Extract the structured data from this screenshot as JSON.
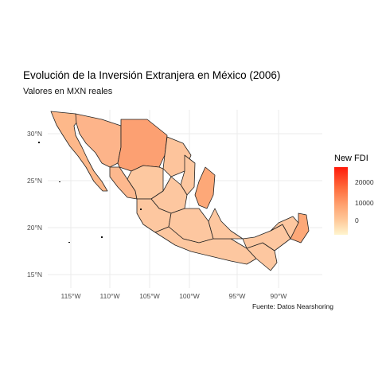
{
  "title": "Evolución de la Inversión Extranjera en México (2006)",
  "subtitle": "Valores en MXN reales",
  "caption": "Fuente: Datos Nearshoring",
  "legend": {
    "title": "New FDI",
    "ticks": [
      "20000",
      "10000",
      "0"
    ],
    "colors": {
      "high": "#FF1A0A",
      "mid": "#FFA06E",
      "low": "#FFF5CE"
    }
  },
  "axes": {
    "lat_labels": [
      "30°N",
      "25°N",
      "20°N",
      "15°N"
    ],
    "lon_labels": [
      "115°W",
      "110°W",
      "105°W",
      "100°W",
      "95°W",
      "90°W"
    ],
    "grid": true
  },
  "map": {
    "region": "México",
    "units": "state",
    "fill_scale": "sequential light-yellow to red",
    "region_colors": {
      "chihuahua": "#FCA072",
      "baja_california": "#FDB88A",
      "sonora": "#FDB48A",
      "coahuila": "#FDC49C",
      "tamaulipas": "#FDA878",
      "durango": "#FDC8A0",
      "sinaloa": "#FDB88E",
      "south": "#FDC7A0"
    }
  }
}
